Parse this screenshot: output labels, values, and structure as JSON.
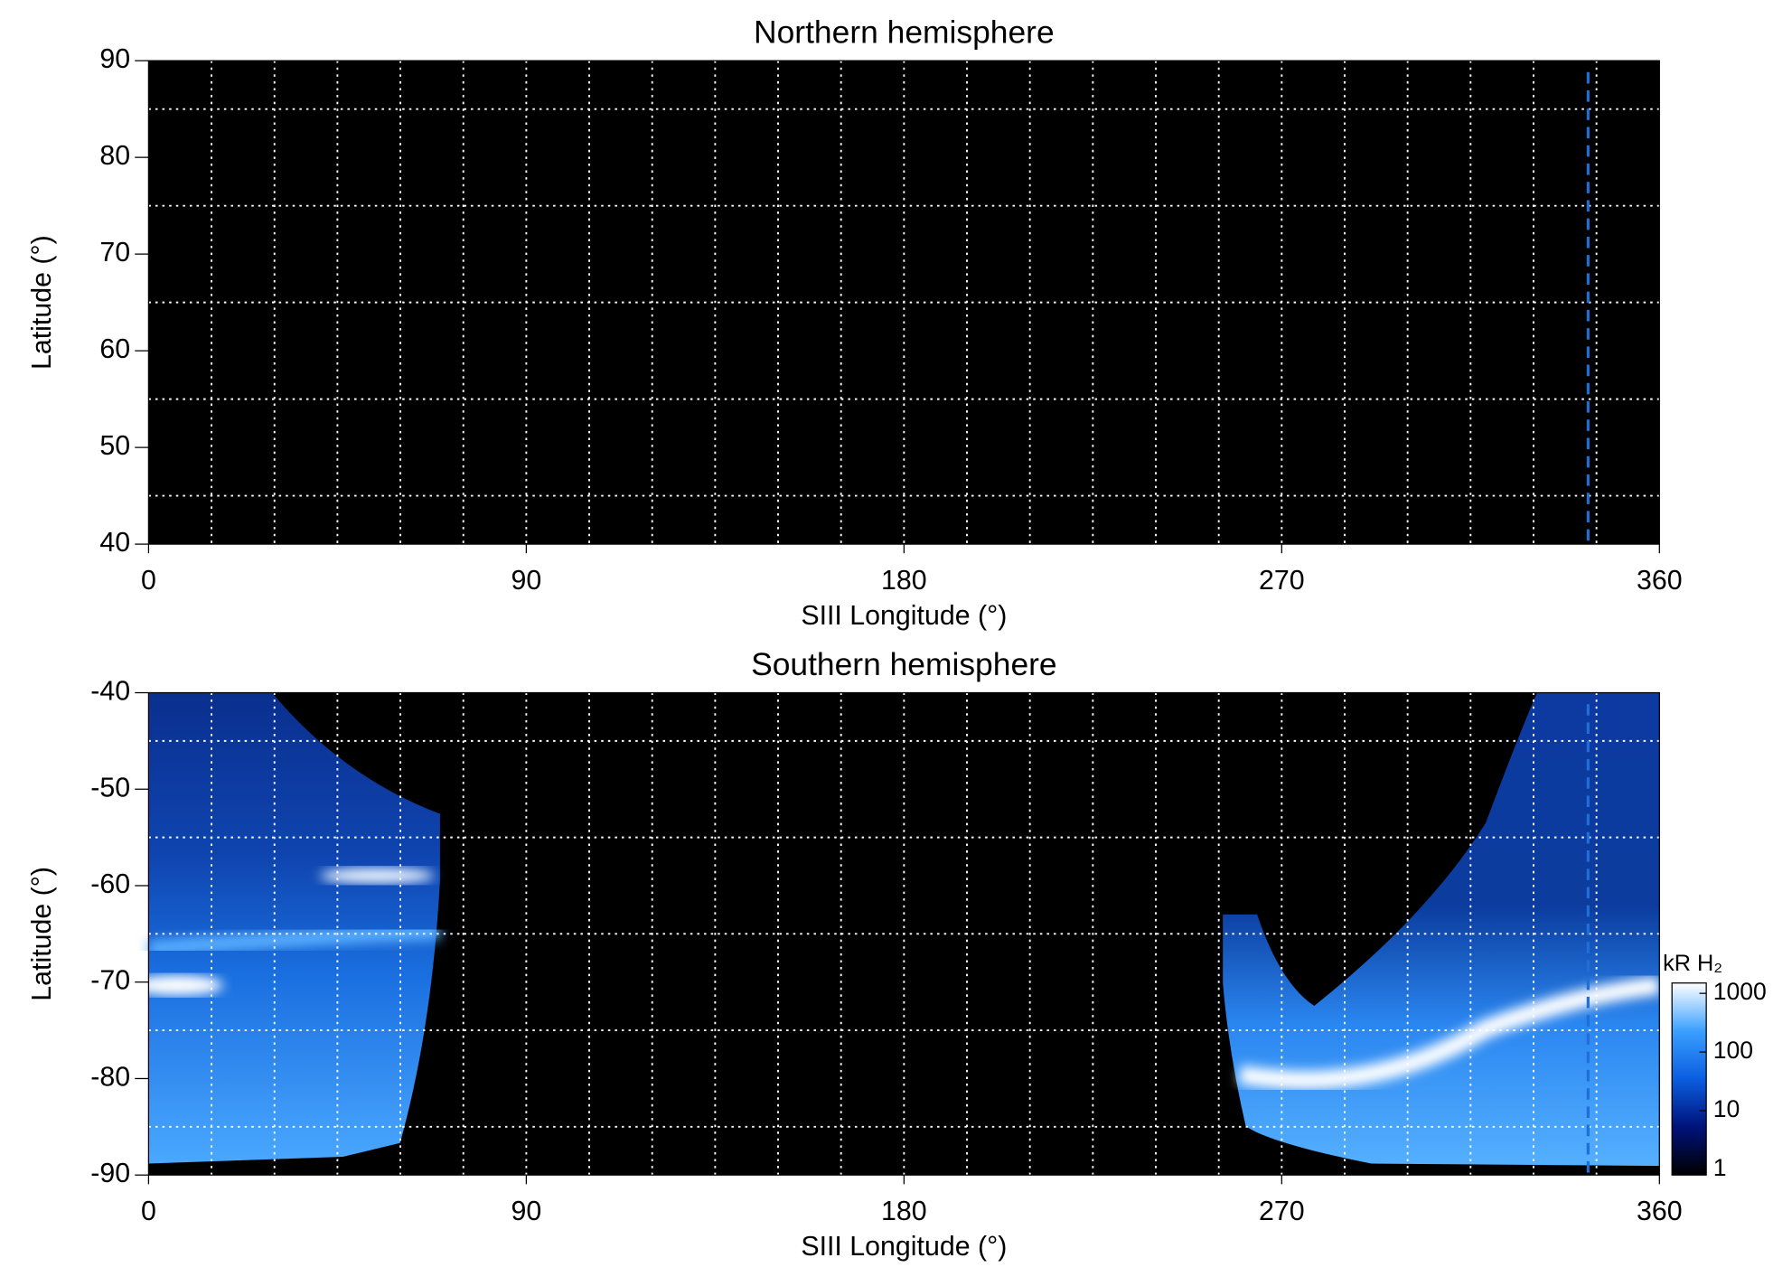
{
  "chart_data": [
    {
      "type": "heatmap",
      "title": "Northern hemisphere",
      "x_label": "SIII Longitude (°)",
      "y_label": "Latitude (°)",
      "xlim": [
        0,
        360
      ],
      "xticks": [
        0,
        90,
        180,
        270,
        360
      ],
      "ylim": [
        40,
        90
      ],
      "yticks": [
        40,
        50,
        60,
        70,
        80,
        90
      ],
      "x_grid": [
        15,
        30,
        45,
        60,
        75,
        90,
        105,
        120,
        135,
        150,
        165,
        180,
        195,
        210,
        225,
        240,
        255,
        270,
        285,
        300,
        315,
        330,
        345
      ],
      "y_grid": [
        45,
        55,
        65,
        75,
        85
      ],
      "reference_line": {
        "x": 343,
        "color": "#1f6fd6"
      }
    },
    {
      "type": "heatmap",
      "title": "Southern hemisphere",
      "x_label": "SIII Longitude (°)",
      "y_label": "Latitude (°)",
      "xlim": [
        0,
        360
      ],
      "xticks": [
        0,
        90,
        180,
        270,
        360
      ],
      "ylim": [
        -90,
        -40
      ],
      "yticks": [
        -90,
        -80,
        -70,
        -60,
        -50,
        -40
      ],
      "x_grid": [
        15,
        30,
        45,
        60,
        75,
        90,
        105,
        120,
        135,
        150,
        165,
        180,
        195,
        210,
        225,
        240,
        255,
        270,
        285,
        300,
        315,
        330,
        345
      ],
      "y_grid": [
        -85,
        -75,
        -65,
        -55,
        -45
      ],
      "reference_line": {
        "x": 343,
        "color": "#1f6fd6"
      },
      "colorbar": {
        "label": "kR H₂",
        "log_scale": true,
        "clim": [
          0.8,
          1500
        ],
        "ticks": [
          1,
          10,
          100,
          1000
        ],
        "colormap": [
          "#000000",
          "#00127a",
          "#0a5ee0",
          "#3aa0ff",
          "#ffffff"
        ]
      }
    }
  ]
}
